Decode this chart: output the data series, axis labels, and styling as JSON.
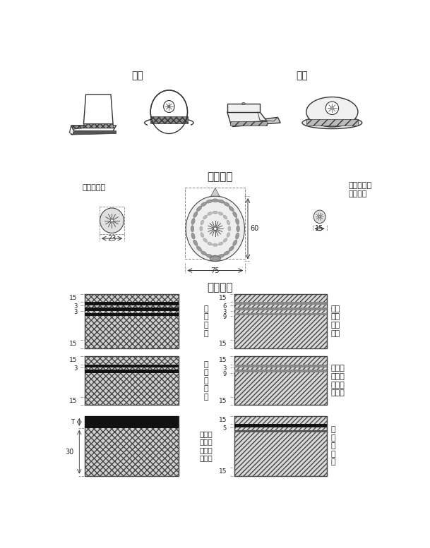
{
  "bg_color": "#ffffff",
  "title_f": "女性",
  "title_m": "男性",
  "ki_sho_title": "き　　章",
  "sho_label_left": "消　防　章",
  "sho_label_right": "あごひも留\nめ消防章",
  "dim_75": "75",
  "dim_60": "60",
  "dim_23": "23",
  "dim_15_r": "15",
  "shu_sho_title": "周　　章",
  "rank_ll1": "消\n防\n司\n令",
  "rank_ll2": "消\n防\n司\n令\n補",
  "rank_ll3": "消消消\n防防防\n副士士\n士長長",
  "rank_rl1": "消消\n防防\n司総\n監監",
  "rank_rl2": "消　消\n防　防\n正　防\n監　監",
  "rank_rl3": "消\n防\n司\n令\n長"
}
